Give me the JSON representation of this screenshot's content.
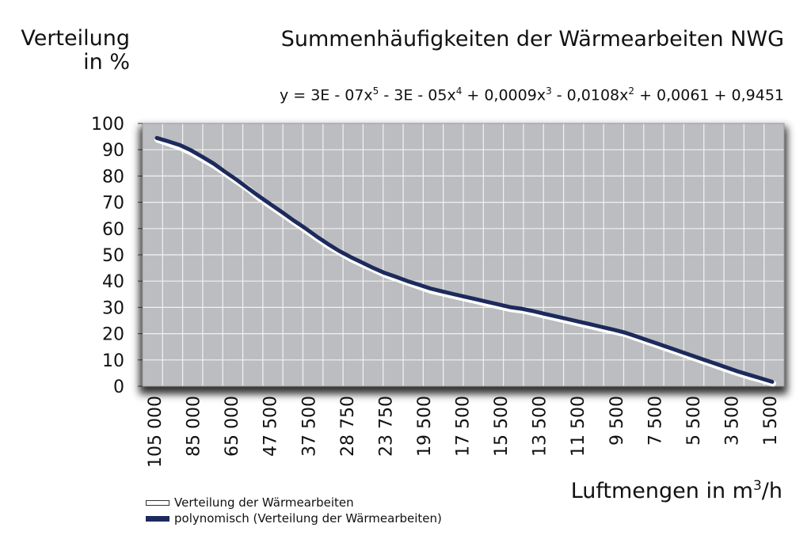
{
  "chart_data": {
    "type": "line",
    "title": "Summenhäufigkeiten der Wärmearbeiten NWG",
    "formula": {
      "parts": [
        "y = 3E - 07x",
        "5",
        " - 3E - 05x",
        "4",
        " + 0,0009x",
        "3",
        " - 0,0108x",
        "2",
        " + 0,0061 + 0,9451"
      ]
    },
    "ylabel": [
      "Verteilung",
      "in %"
    ],
    "xlabel": {
      "text": "Luftmengen in m",
      "sup": "3",
      "suffix": "/h"
    },
    "ylim": [
      0,
      100
    ],
    "yticks": [
      0,
      10,
      20,
      30,
      40,
      50,
      60,
      70,
      80,
      90,
      100
    ],
    "xtick_labels": [
      "105 000",
      "85 000",
      "65 000",
      "47 500",
      "37 500",
      "28 750",
      "23 750",
      "19 500",
      "17 500",
      "15 500",
      "13 500",
      "11 500",
      "9 500",
      "7 500",
      "5 500",
      "3 500",
      "1 500"
    ],
    "grid": true,
    "legend_placement": "bottom-left",
    "series": [
      {
        "name": "Verteilung der Wärmearbeiten",
        "color": "#ffffff",
        "values": [
          94.5,
          93,
          91.5,
          89.5,
          87,
          84.5,
          81.5,
          78.5,
          75.5,
          72,
          69,
          66,
          63,
          60,
          57,
          54,
          51.5,
          49,
          47,
          45,
          43,
          41.5,
          40,
          38.5,
          37,
          36,
          35,
          34,
          33,
          32,
          31,
          30,
          29.5,
          28.5,
          27.5,
          26.5,
          25.5,
          24.5,
          23.5,
          22.5,
          21.5,
          20.5,
          19,
          17.5,
          16,
          14.5,
          13,
          11.5,
          10,
          8.5,
          7,
          5.5,
          4.2,
          3,
          1.7
        ]
      },
      {
        "name": "polynomisch (Verteilung der Wärmearbeiten)",
        "color": "#1d2a5c",
        "values": [
          94.5,
          93.2,
          91.8,
          89.8,
          87.3,
          84.7,
          81.6,
          78.6,
          75.4,
          72.2,
          69.2,
          66.2,
          63.1,
          60.2,
          57.1,
          54.2,
          51.5,
          49.2,
          47.1,
          45,
          43.1,
          41.6,
          40,
          38.6,
          37.2,
          36.1,
          35.1,
          34.1,
          33.1,
          32.1,
          31.1,
          30.1,
          29.5,
          28.6,
          27.6,
          26.6,
          25.6,
          24.6,
          23.6,
          22.6,
          21.6,
          20.5,
          19.1,
          17.6,
          16.1,
          14.6,
          13.1,
          11.6,
          10.1,
          8.6,
          7.1,
          5.6,
          4.3,
          3,
          1.7
        ]
      }
    ]
  }
}
